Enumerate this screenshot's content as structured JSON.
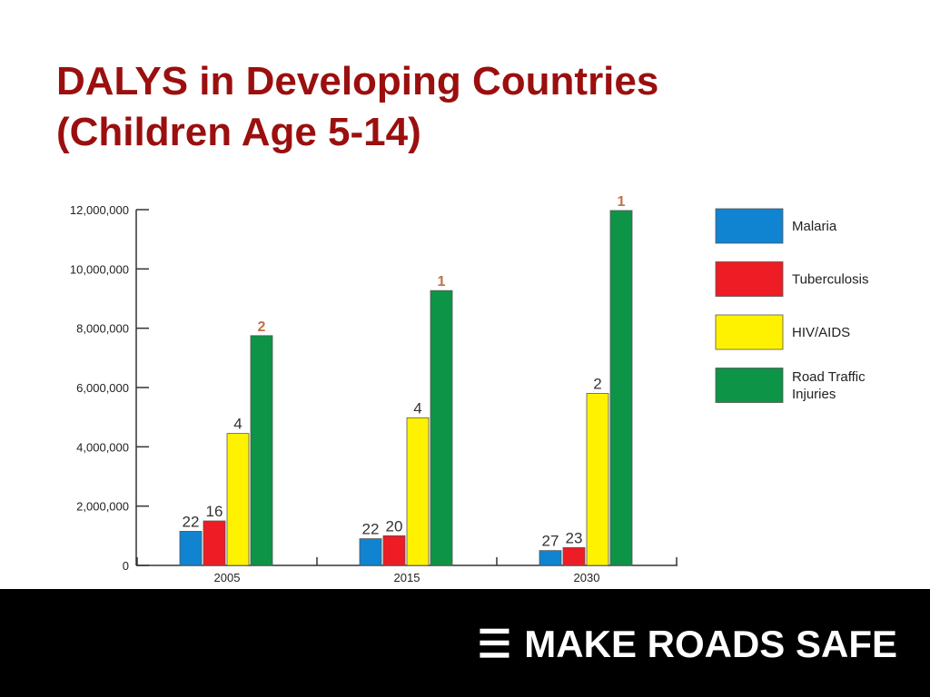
{
  "slide": {
    "title_line1": "DALYS in Developing Countries",
    "title_line2": "(Children Age 5-14)"
  },
  "footer": {
    "brand_icon": "☰",
    "brand_text": "MAKE ROADS SAFE"
  },
  "colors": {
    "title": "#9b0f0f",
    "rank_highlight": "#c0704a",
    "footer_bg": "#000000"
  },
  "chart_data": {
    "type": "bar",
    "title": "",
    "xlabel": "",
    "ylabel": "",
    "categories": [
      "2005",
      "2015",
      "2030"
    ],
    "ylim": [
      0,
      12000000
    ],
    "y_ticks": [
      0,
      2000000,
      4000000,
      6000000,
      8000000,
      10000000,
      12000000
    ],
    "y_tick_labels": [
      "0",
      "2,000,000",
      "4,000,000",
      "6,000,000",
      "8,000,000",
      "10,000,000",
      "12,000,000"
    ],
    "grid": false,
    "legend_position": "right",
    "series": [
      {
        "name": "Malaria",
        "color": "#1084d0",
        "values": [
          1150000,
          900000,
          500000
        ],
        "rank_labels": [
          "22",
          "22",
          "27"
        ]
      },
      {
        "name": "Tuberculosis",
        "color": "#ee1c25",
        "values": [
          1500000,
          1000000,
          600000
        ],
        "rank_labels": [
          "16",
          "20",
          "23"
        ]
      },
      {
        "name": "HIV/AIDS",
        "color": "#fff200",
        "values": [
          4450000,
          4980000,
          5800000
        ],
        "rank_labels": [
          "4",
          "4",
          "2"
        ]
      },
      {
        "name": "Road Traffic Injuries",
        "color": "#0d9447",
        "values": [
          7750000,
          9270000,
          11970000
        ],
        "rank_labels": [
          "2",
          "1",
          "1"
        ],
        "rank_label_highlight": true
      }
    ],
    "legend": [
      {
        "lines": [
          "Malaria"
        ]
      },
      {
        "lines": [
          "Tuberculosis"
        ]
      },
      {
        "lines": [
          "HIV/AIDS"
        ]
      },
      {
        "lines": [
          "Road Traffic",
          "Injuries"
        ]
      }
    ]
  }
}
